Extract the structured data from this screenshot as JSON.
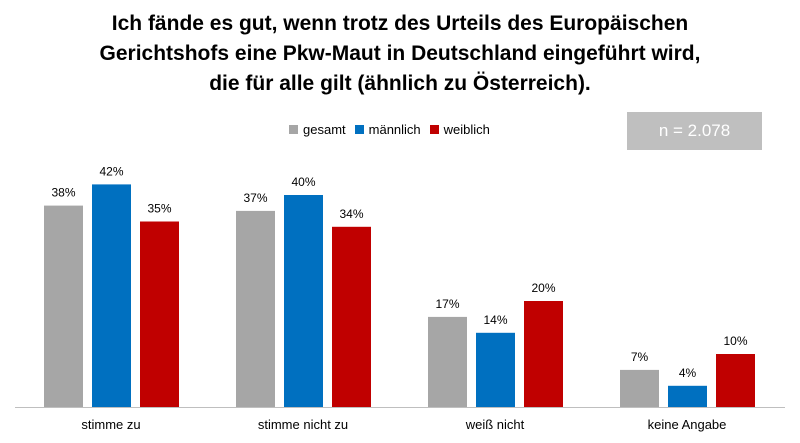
{
  "title_lines": [
    "Ich fände es gut, wenn trotz des Urteils des Europäischen",
    "Gerichtshofs eine Pkw-Maut in Deutschland eingeführt wird,",
    "die für alle gilt (ähnlich zu Österreich)."
  ],
  "sample_size": "n = 2.078",
  "colors": {
    "gesamt": "#A6A6A6",
    "maennlich": "#0070C0",
    "weiblich": "#C00000",
    "nbox": "#BFBFBF"
  },
  "chart_data": {
    "type": "bar",
    "title": "Ich fände es gut, wenn trotz des Urteils des Europäischen Gerichtshofs eine Pkw-Maut in Deutschland eingeführt wird, die für alle gilt (ähnlich zu Österreich).",
    "categories": [
      "stimme zu",
      "stimme nicht zu",
      "weiß nicht",
      "keine Angabe"
    ],
    "series": [
      {
        "name": "gesamt",
        "values": [
          38,
          37,
          17,
          7
        ],
        "labels": [
          "38%",
          "37%",
          "17%",
          "7%"
        ]
      },
      {
        "name": "männlich",
        "values": [
          42,
          40,
          14,
          4
        ],
        "labels": [
          "42%",
          "40%",
          "14%",
          "4%"
        ]
      },
      {
        "name": "weiblich",
        "values": [
          35,
          34,
          20,
          10
        ],
        "labels": [
          "35%",
          "34%",
          "20%",
          "10%"
        ]
      }
    ],
    "xlabel": "",
    "ylabel": "",
    "ylim": [
      0,
      50
    ],
    "grid": false,
    "legend_position": "top"
  }
}
